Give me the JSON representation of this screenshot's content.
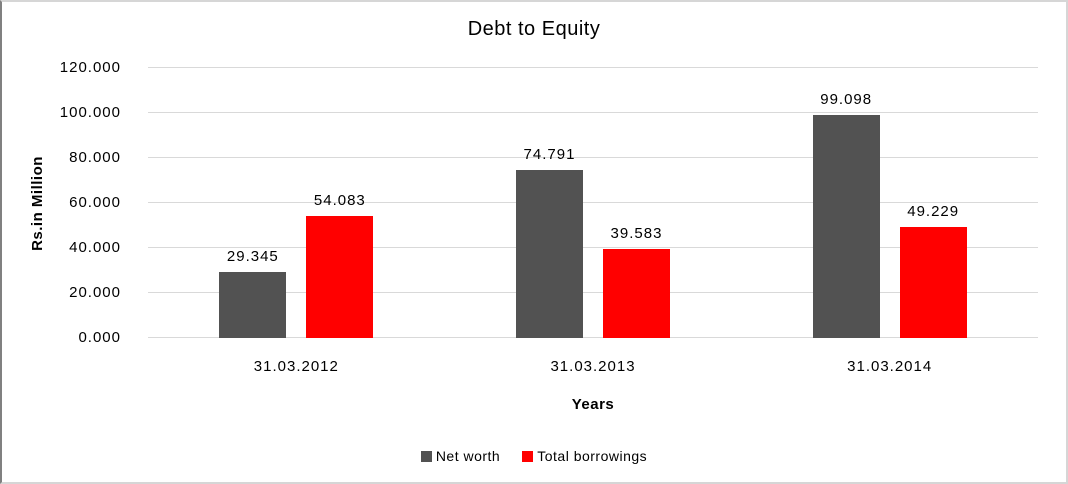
{
  "chart_data": {
    "type": "bar",
    "title": "Debt to Equity",
    "xlabel": "Years",
    "ylabel": "Rs.in Million",
    "categories": [
      "31.03.2012",
      "31.03.2013",
      "31.03.2014"
    ],
    "series": [
      {
        "name": "Net worth",
        "color": "#525252",
        "values": [
          29.345,
          74.791,
          99.098
        ],
        "value_labels": [
          "29.345",
          "74.791",
          "99.098"
        ]
      },
      {
        "name": "Total borrowings",
        "color": "#ff0000",
        "values": [
          54.083,
          39.583,
          49.229
        ],
        "value_labels": [
          "54.083",
          "39.583",
          "49.229"
        ]
      }
    ],
    "ylim": [
      0,
      120
    ],
    "yticks": [
      {
        "value": 0,
        "label": "0.000"
      },
      {
        "value": 20,
        "label": "20.000"
      },
      {
        "value": 40,
        "label": "40.000"
      },
      {
        "value": 60,
        "label": "60.000"
      },
      {
        "value": 80,
        "label": "80.000"
      },
      {
        "value": 100,
        "label": "100.000"
      },
      {
        "value": 120,
        "label": "120.000"
      }
    ],
    "grid": true,
    "legend_position": "bottom",
    "colors": {
      "gridline": "#d9d9d9",
      "text": "#000000",
      "background": "#ffffff"
    }
  }
}
